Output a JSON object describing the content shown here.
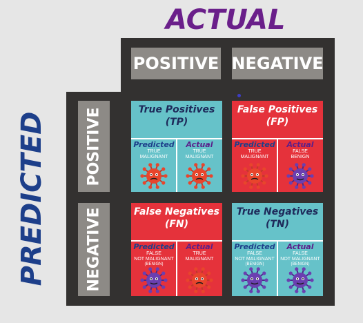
{
  "titles": {
    "actual": "ACTUAL",
    "predicted": "PREDICTED"
  },
  "columns": {
    "positive": "POSITIVE",
    "negative": "NEGATIVE"
  },
  "rows": {
    "positive": "POSITIVE",
    "negative": "NEGATIVE"
  },
  "colors": {
    "actual_title": "#6a1f8a",
    "predicted_title": "#1d3f8a",
    "teal": "#66c2c9",
    "red": "#e5323b",
    "frame": "#333130",
    "header": "#8d8a86",
    "predicted_label": "#1d3f8a",
    "actual_label": "#5a1f8a",
    "malignant_virus": "#e8452c",
    "benign_virus": "#6b3fb0"
  },
  "cells": {
    "tp": {
      "title_line1": "True Positives",
      "title_line2": "(TP)",
      "bg": "teal",
      "title_color": "#1e2a5a",
      "left": {
        "label": "Predicted",
        "line1": "TRUE",
        "line2": "MALIGNANT",
        "line3": "",
        "virus": "malignant-virus-icon"
      },
      "right": {
        "label": "Actual",
        "line1": "TRUE",
        "line2": "MALIGNANT",
        "line3": "",
        "virus": "malignant-virus-icon"
      }
    },
    "fp": {
      "title_line1": "False Positives",
      "title_line2": "(FP)",
      "bg": "red",
      "title_color": "#ffffff",
      "left": {
        "label": "Predicted",
        "line1": "TRUE",
        "line2": "MALIGNANT",
        "line3": "",
        "virus": "malignant-virus-icon"
      },
      "right": {
        "label": "Actual",
        "line1": "FALSE",
        "line2": "BENIGN",
        "line3": "",
        "virus": "benign-virus-icon"
      }
    },
    "fn": {
      "title_line1": "False Negatives",
      "title_line2": "(FN)",
      "bg": "red",
      "title_color": "#ffffff",
      "left": {
        "label": "Predicted",
        "line1": "FALSE",
        "line2": "NOT MALIGNANT",
        "line3": "(BENIGN)",
        "virus": "benign-virus-icon"
      },
      "right": {
        "label": "Actual",
        "line1": "TRUE",
        "line2": "MALIGNANT",
        "line3": "",
        "virus": "malignant-virus-icon"
      }
    },
    "tn": {
      "title_line1": "True Negatives",
      "title_line2": "(TN)",
      "bg": "teal",
      "title_color": "#1e2a5a",
      "left": {
        "label": "Predicted",
        "line1": "FALSE",
        "line2": "NOT MALIGNANT",
        "line3": "(BENIGN)",
        "virus": "benign-virus-icon"
      },
      "right": {
        "label": "Actual",
        "line1": "FALSE",
        "line2": "NOT MALIGNANT",
        "line3": "(BENIGN)",
        "virus": "benign-virus-icon"
      }
    }
  }
}
